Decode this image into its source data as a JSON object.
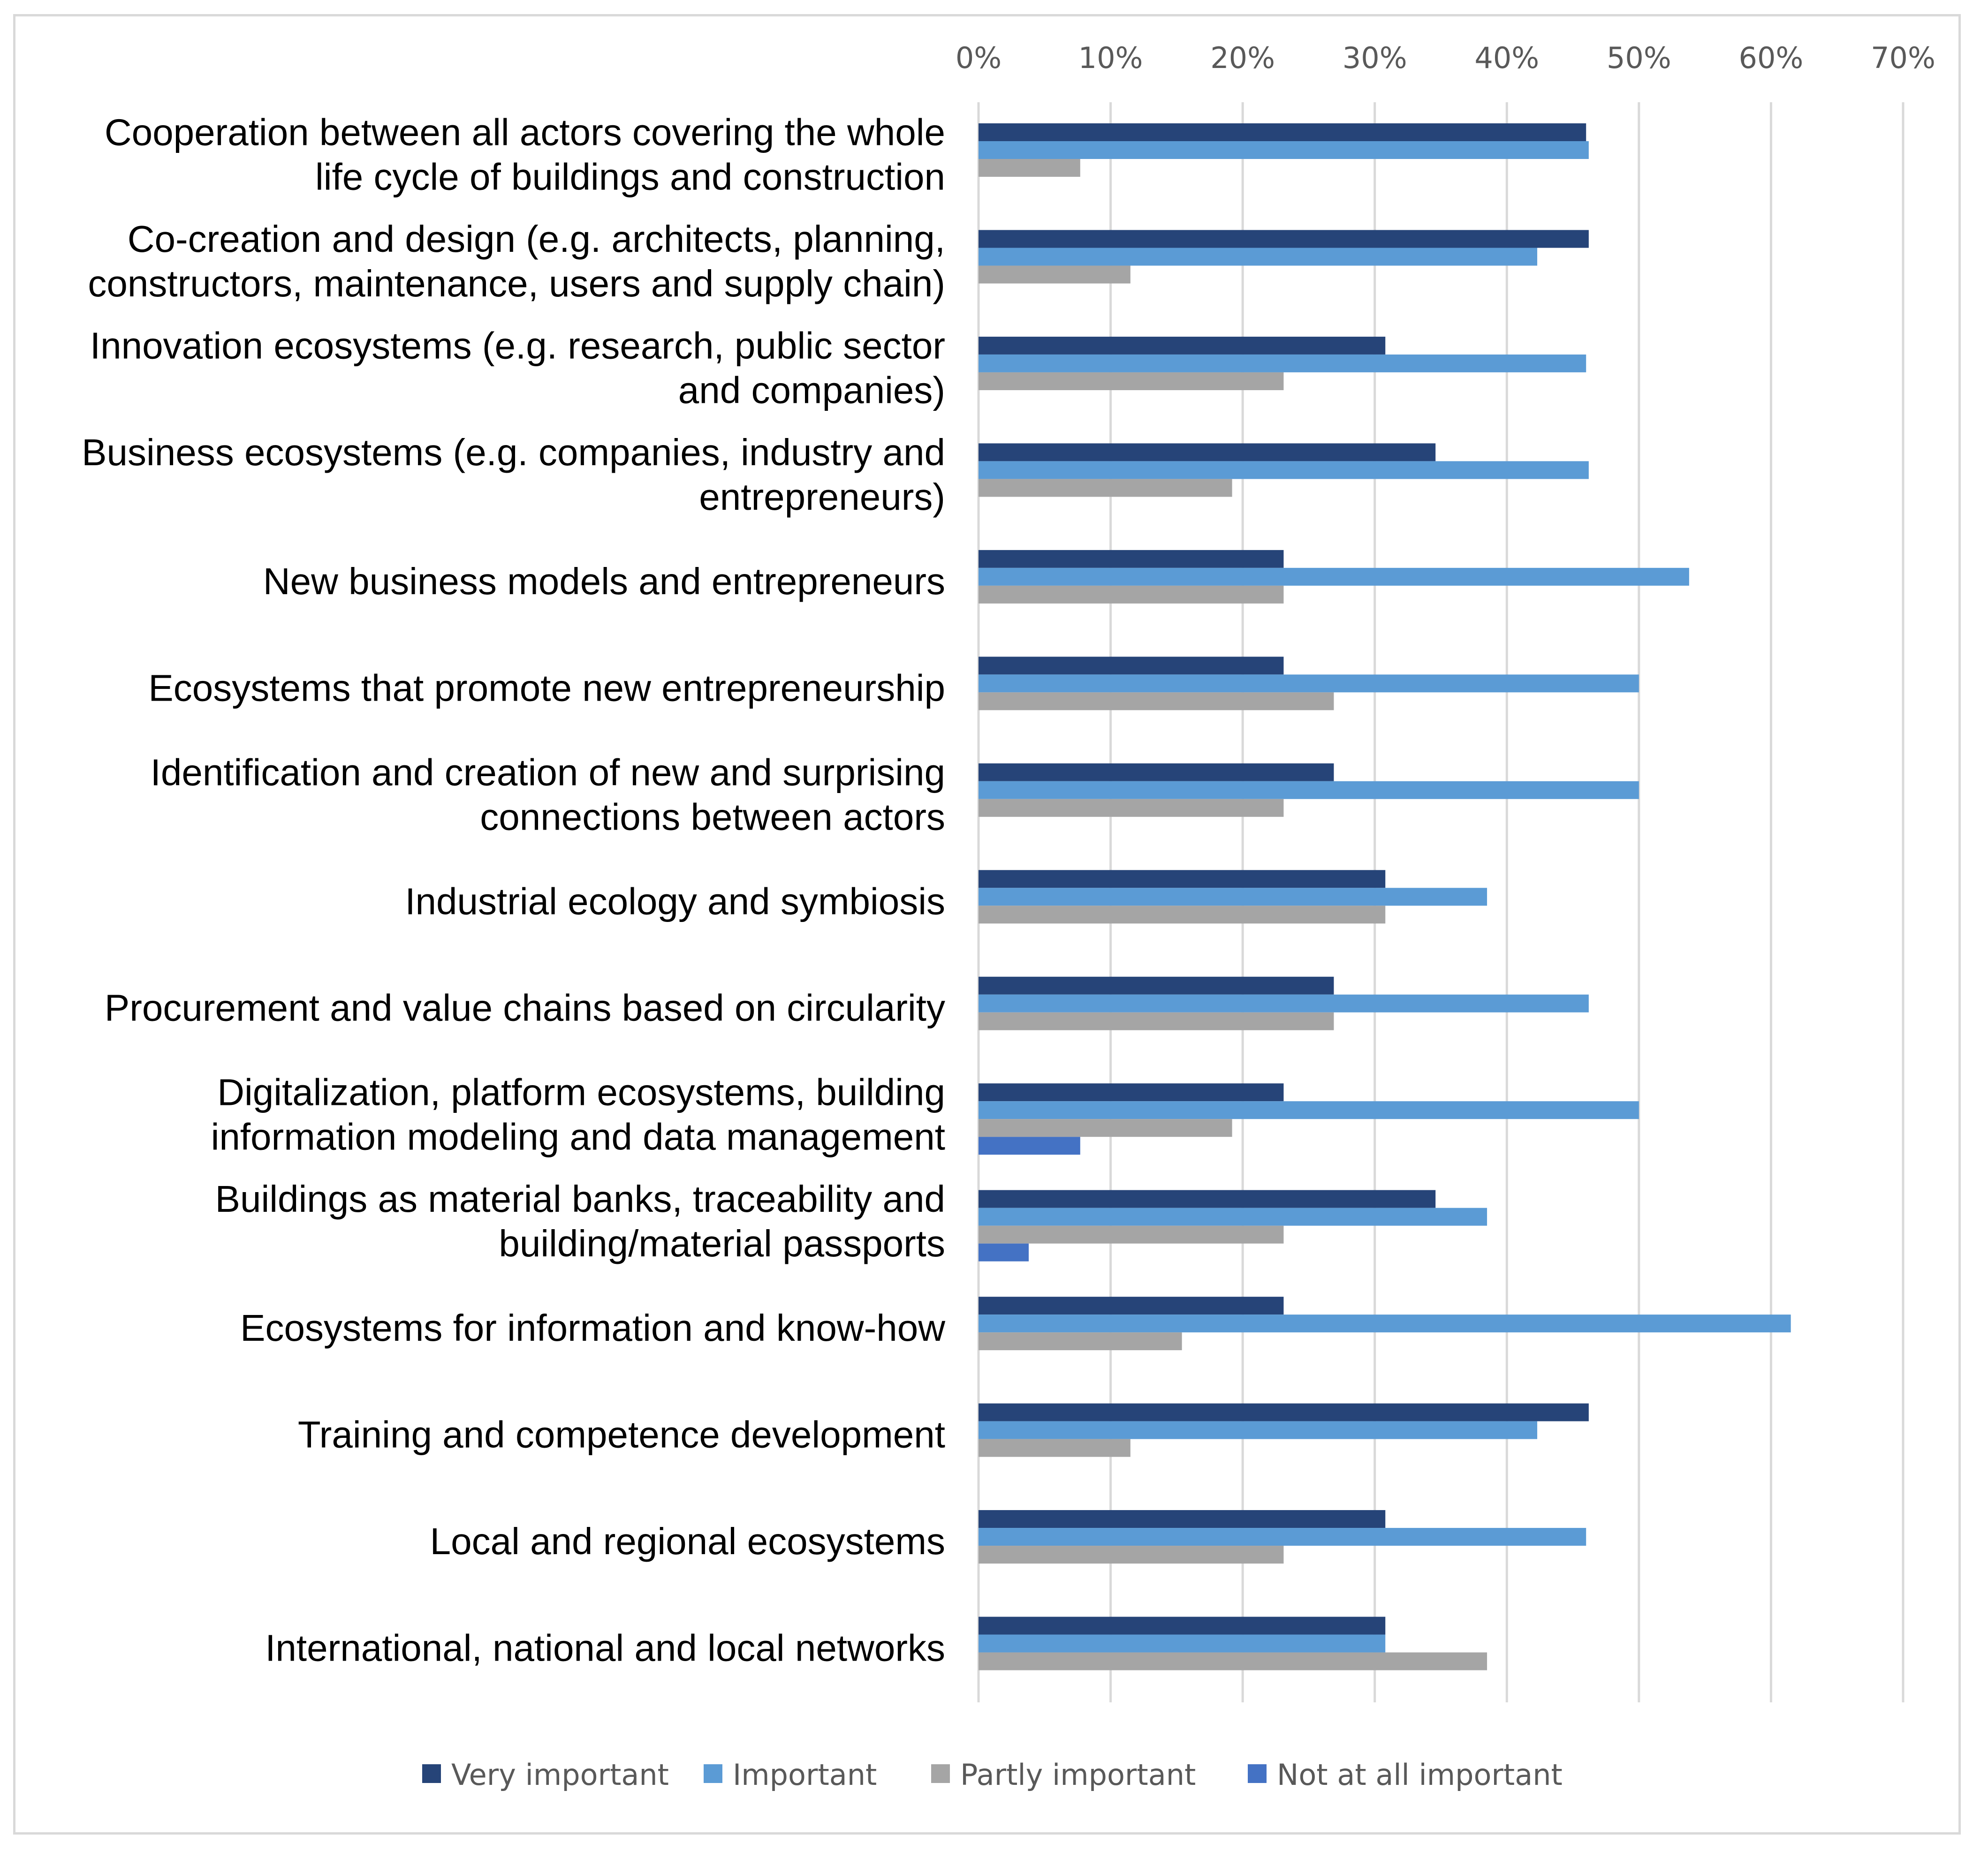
{
  "chart_data": {
    "type": "bar",
    "orientation": "horizontal",
    "title": "",
    "xlabel": "",
    "ylabel": "",
    "xlim": [
      0,
      0.7
    ],
    "x_ticks": [
      "0%",
      "10%",
      "20%",
      "30%",
      "40%",
      "50%",
      "60%",
      "70%"
    ],
    "grid": true,
    "legend_position": "bottom",
    "categories": [
      [
        "Cooperation between all actors covering the whole",
        "life cycle of buildings and construction"
      ],
      [
        "Co-creation and design (e.g. architects, planning,",
        "constructors, maintenance, users and supply chain)"
      ],
      [
        "Innovation ecosystems (e.g. research, public sector",
        "and companies)"
      ],
      [
        "Business ecosystems (e.g. companies, industry and",
        "entrepreneurs)"
      ],
      [
        "New business models and entrepreneurs"
      ],
      [
        "Ecosystems that promote new entrepreneurship"
      ],
      [
        "Identification and creation of new and surprising",
        "connections between actors"
      ],
      [
        "Industrial ecology and symbiosis"
      ],
      [
        "Procurement and value chains based on circularity"
      ],
      [
        "Digitalization, platform ecosystems, building",
        "information modeling and data management"
      ],
      [
        "Buildings as material banks, traceability and ",
        "building/material passports"
      ],
      [
        "Ecosystems for information and know-how"
      ],
      [
        "Training and competence development"
      ],
      [
        "Local and regional ecosystems"
      ],
      [
        "International, national and local networks"
      ]
    ],
    "series": [
      {
        "name": "Very important",
        "color": "#264478",
        "values": [
          0.46,
          0.462,
          0.308,
          0.346,
          0.231,
          0.231,
          0.269,
          0.308,
          0.269,
          0.231,
          0.346,
          0.231,
          0.462,
          0.308,
          0.308
        ]
      },
      {
        "name": "Important",
        "color": "#5b9bd5",
        "values": [
          0.462,
          0.423,
          0.46,
          0.462,
          0.538,
          0.5,
          0.5,
          0.385,
          0.462,
          0.5,
          0.385,
          0.615,
          0.423,
          0.46,
          0.308
        ]
      },
      {
        "name": "Partly important",
        "color": "#a5a5a5",
        "values": [
          0.077,
          0.115,
          0.231,
          0.192,
          0.231,
          0.269,
          0.231,
          0.308,
          0.269,
          0.192,
          0.231,
          0.154,
          0.115,
          0.231,
          0.385
        ]
      },
      {
        "name": "Not at all important",
        "color": "#4472c4",
        "values": [
          0,
          0,
          0,
          0,
          0,
          0,
          0,
          0,
          0,
          0.077,
          0.038,
          0,
          0,
          0,
          0
        ]
      }
    ]
  }
}
